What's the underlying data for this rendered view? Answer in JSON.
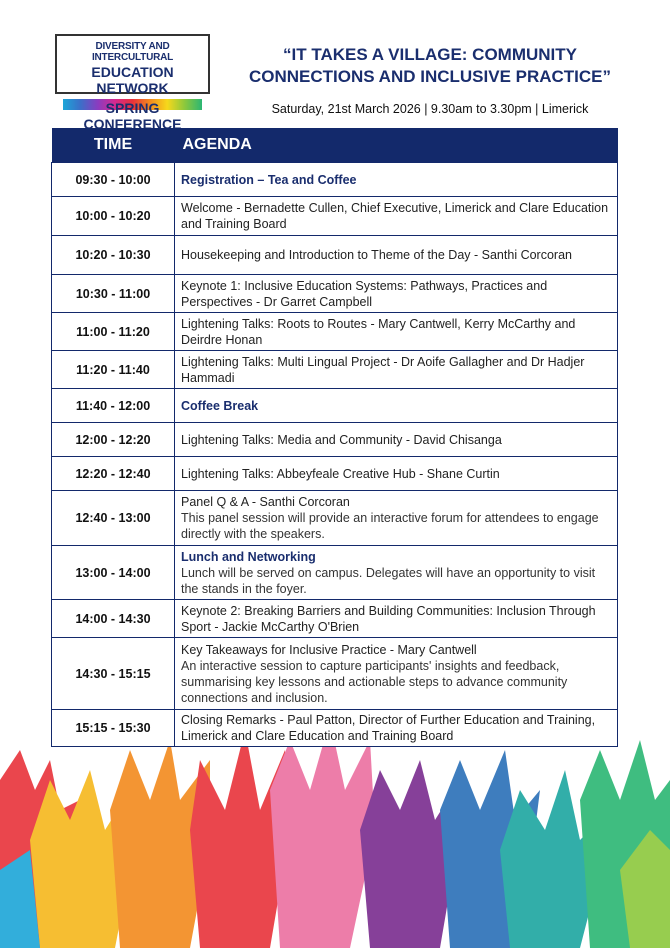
{
  "logo": {
    "line1": "DIVERSITY AND INTERCULTURAL",
    "line2": "EDUCATION NETWORK"
  },
  "subtitle": "SPRING CONFERENCE",
  "title_line1": "“IT TAKES A VILLAGE: COMMUNITY",
  "title_line2": "CONNECTIONS AND INCLUSIVE PRACTICE”",
  "date_line": "Saturday, 21st March 2026 | 9.30am to 3.30pm | Limerick",
  "table": {
    "headers": [
      "TIME",
      "AGENDA"
    ],
    "rows": [
      {
        "time": "09:30 - 10:00",
        "title": "Registration – Tea and Coffee",
        "highlight": true,
        "h": 34
      },
      {
        "time": "10:00 - 10:20",
        "title": "Welcome - Bernadette Cullen, Chief Executive, Limerick and Clare Education and Training Board",
        "h": 39
      },
      {
        "time": "10:20 - 10:30",
        "title": "Housekeeping and Introduction to Theme of the Day - Santhi Corcoran",
        "h": 39
      },
      {
        "time": "10:30 - 11:00",
        "title": "Keynote 1: Inclusive Education Systems: Pathways, Practices and Perspectives - Dr Garret Campbell",
        "h": 38
      },
      {
        "time": "11:00 - 11:20",
        "title": "Lightening Talks: Roots to Routes - Mary Cantwell, Kerry McCarthy and Deirdre Honan",
        "h": 38
      },
      {
        "time": "11:20 - 11:40",
        "title": "Lightening Talks: Multi Lingual Project - Dr Aoife Gallagher and Dr Hadjer Hammadi",
        "h": 38
      },
      {
        "time": "11:40 - 12:00",
        "title": "Coffee Break",
        "highlight": true,
        "h": 34
      },
      {
        "time": "12:00 - 12:20",
        "title": "Lightening Talks: Media and Community - David Chisanga",
        "h": 34
      },
      {
        "time": "12:20 - 12:40",
        "title": "Lightening Talks: Abbeyfeale Creative Hub - Shane Curtin",
        "h": 34
      },
      {
        "time": "12:40 - 13:00",
        "title": "Panel Q & A - Santhi Corcoran",
        "desc": "This panel session will provide an interactive forum for attendees to engage directly with the speakers.",
        "h": 55
      },
      {
        "time": "13:00 - 14:00",
        "title": "Lunch and Networking",
        "highlight": true,
        "desc": "Lunch will be served on campus. Delegates will have an opportunity to visit the stands in the foyer.",
        "h": 54
      },
      {
        "time": "14:00 - 14:30",
        "title": "Keynote 2: Breaking Barriers and Building Communities: Inclusion Through Sport - Jackie McCarthy O'Brien",
        "h": 38
      },
      {
        "time": "14:30 - 15:15",
        "title": "Key Takeaways for Inclusive Practice - Mary Cantwell",
        "desc": "An interactive session to capture participants' insights and feedback, summarising key lessons and actionable steps to advance community connections and inclusion.",
        "h": 72
      },
      {
        "time": "15:15 - 15:30",
        "title": "Closing Remarks - Paul Patton, Director of Further Education and Training, Limerick and Clare Education and Training Board",
        "h": 37
      }
    ]
  },
  "colors": {
    "navy": "#13296b",
    "text": "#1a2e6e"
  }
}
